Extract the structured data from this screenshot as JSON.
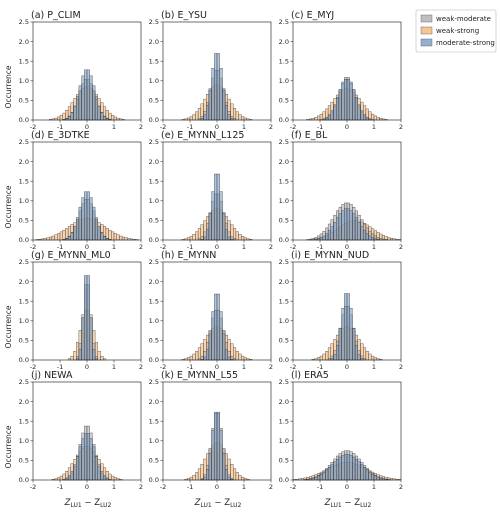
{
  "figure": {
    "ylabel": "Occurrence",
    "xlabel": "Z_LU1 − Z_LU2",
    "xlabel_main": "Z",
    "xlabel_sub1": "LU1",
    "xlabel_minus": " − Z",
    "xlabel_sub2": "LU2"
  },
  "colors": {
    "weak-moderate": "#a9a9ae",
    "weak-strong": "#f5b06c",
    "moderate-strong": "#6f96c0"
  },
  "chart_data": {
    "type": "histogram",
    "x_range": [
      -2,
      2
    ],
    "y_range": [
      0,
      2.5
    ],
    "x_ticks": [
      -2,
      -1,
      0,
      1,
      2
    ],
    "y_ticks": [
      0.0,
      0.5,
      1.0,
      1.5,
      2.0,
      2.5
    ],
    "x_tick_labels": [
      "-2",
      "-1",
      "0",
      "1",
      "2"
    ],
    "y_tick_labels": [
      "0.0",
      "0.5",
      "1.0",
      "1.5",
      "2.0",
      "2.5"
    ],
    "series_names": [
      "weak-moderate",
      "weak-strong",
      "moderate-strong"
    ],
    "legend_location": "upper right, outside panel grid",
    "panels": [
      {
        "title": "(a) P_CLIM",
        "peaks": [
          1.05,
          0.85,
          1.3
        ],
        "means": [
          0.0,
          0.0,
          0.0
        ],
        "sds": [
          0.3,
          0.48,
          0.28
        ]
      },
      {
        "title": "(b) E_YSU",
        "peaks": [
          1.3,
          0.9,
          1.75
        ],
        "means": [
          0.0,
          0.0,
          0.0
        ],
        "sds": [
          0.24,
          0.44,
          0.2
        ]
      },
      {
        "title": "(c) E_MYJ",
        "peaks": [
          1.1,
          0.8,
          1.05
        ],
        "means": [
          0.0,
          0.0,
          0.0
        ],
        "sds": [
          0.3,
          0.52,
          0.32
        ]
      },
      {
        "title": "(d) E_3DTKE",
        "peaks": [
          1.05,
          0.55,
          1.25
        ],
        "means": [
          0.0,
          0.0,
          0.0
        ],
        "sds": [
          0.3,
          0.68,
          0.28
        ]
      },
      {
        "title": "(e) E_MYNN_L125",
        "peaks": [
          1.2,
          0.8,
          1.75
        ],
        "means": [
          0.0,
          0.0,
          0.0
        ],
        "sds": [
          0.24,
          0.46,
          0.18
        ]
      },
      {
        "title": "(f) E_BL",
        "peaks": [
          0.95,
          0.5,
          0.8
        ],
        "means": [
          0.0,
          0.3,
          0.0
        ],
        "sds": [
          0.5,
          0.62,
          0.42
        ]
      },
      {
        "title": "(g) E_MYNN_ML0",
        "peaks": [
          2.05,
          1.3,
          2.35
        ],
        "means": [
          0.0,
          0.0,
          0.0
        ],
        "sds": [
          0.14,
          0.24,
          0.12
        ]
      },
      {
        "title": "(h) E_MYNN",
        "peaks": [
          1.3,
          0.85,
          1.75
        ],
        "means": [
          0.0,
          0.0,
          0.0
        ],
        "sds": [
          0.24,
          0.46,
          0.18
        ]
      },
      {
        "title": "(i) E_MYNN_NUD",
        "peaks": [
          1.4,
          0.85,
          1.75
        ],
        "means": [
          0.0,
          0.0,
          0.0
        ],
        "sds": [
          0.24,
          0.46,
          0.2
        ]
      },
      {
        "title": "(j) NEWA",
        "peaks": [
          1.4,
          0.85,
          1.2
        ],
        "means": [
          0.0,
          0.0,
          0.0
        ],
        "sds": [
          0.27,
          0.46,
          0.3
        ]
      },
      {
        "title": "(k) E_MYNN_L55",
        "peaks": [
          1.75,
          0.95,
          1.8
        ],
        "means": [
          0.0,
          0.0,
          0.0
        ],
        "sds": [
          0.2,
          0.42,
          0.18
        ]
      },
      {
        "title": "(l) ERA5",
        "peaks": [
          0.75,
          0.45,
          0.65
        ],
        "means": [
          0.0,
          0.0,
          0.0
        ],
        "sds": [
          0.55,
          0.75,
          0.55
        ]
      }
    ]
  }
}
